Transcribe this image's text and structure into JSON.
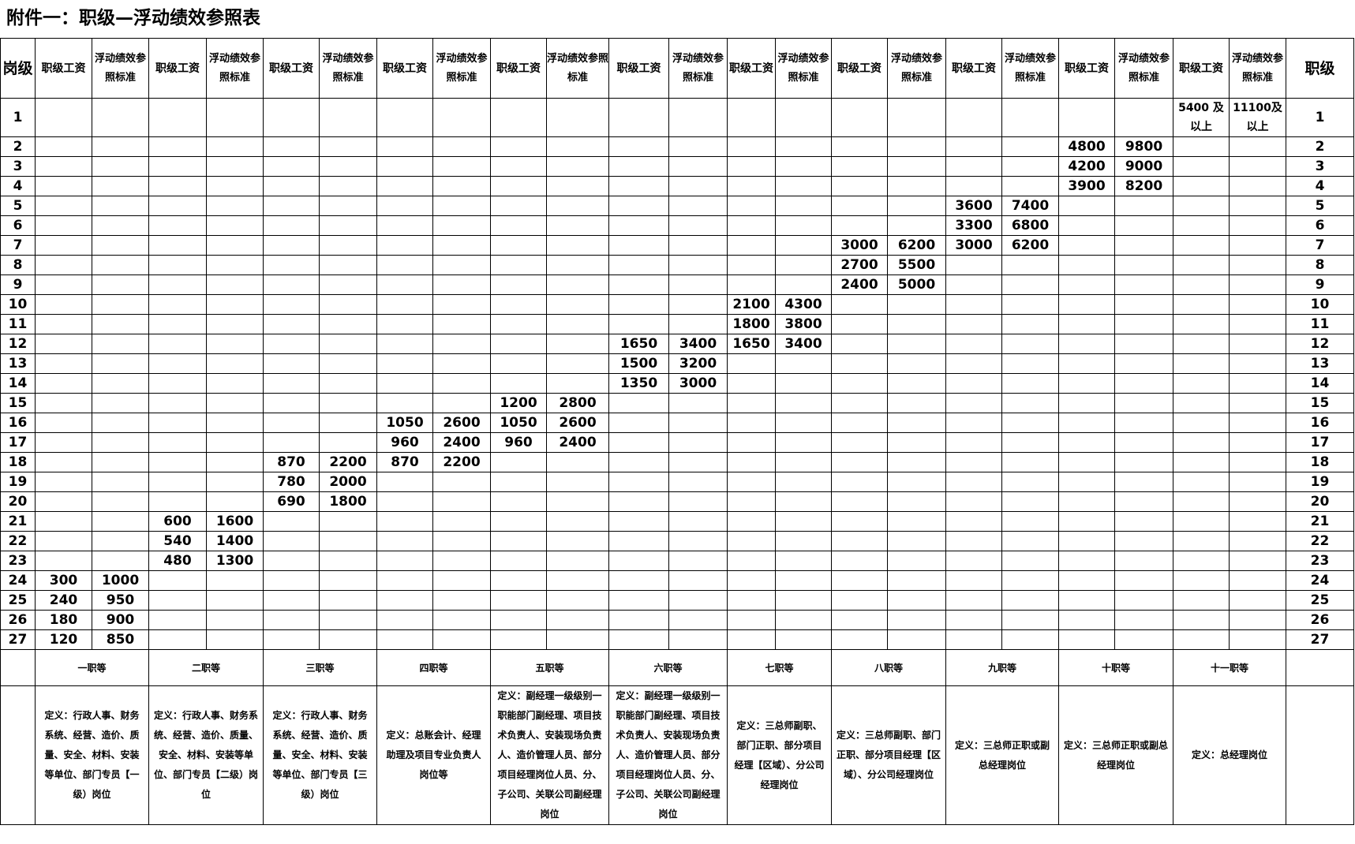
{
  "title": "附件一：职级—浮动绩效参照表",
  "header": {
    "post_level": "岗级",
    "level": "职级",
    "pairs": [
      {
        "salary": "职级工资",
        "perf": "浮动绩效参照标准"
      },
      {
        "salary": "职级工资",
        "perf": "浮动绩效参照标准"
      },
      {
        "salary": "职级工资",
        "perf": "浮动绩效参照标准"
      },
      {
        "salary": "职级工资",
        "perf": "浮动绩效参照标准"
      },
      {
        "salary": "职级工资",
        "perf": "浮动绩效参照标准"
      },
      {
        "salary": "职级工资",
        "perf": "浮动绩效参照标准"
      },
      {
        "salary": "职级工资",
        "perf": "浮动绩效参照标准"
      },
      {
        "salary": "职级工资",
        "perf": "浮动绩效参照标准"
      },
      {
        "salary": "职级工资",
        "perf": "浮动绩效参照标准"
      },
      {
        "salary": "职级工资",
        "perf": "浮动绩效参照标准"
      },
      {
        "salary": "职级工资",
        "perf": "浮动绩效参照标准"
      }
    ]
  },
  "rows": [
    [
      "1",
      "",
      "",
      "",
      "",
      "",
      "",
      "",
      "",
      "",
      "",
      "",
      "",
      "",
      "",
      "",
      "",
      "",
      "",
      "",
      "",
      "5400 及以上",
      "11100及以上",
      "1"
    ],
    [
      "2",
      "",
      "",
      "",
      "",
      "",
      "",
      "",
      "",
      "",
      "",
      "",
      "",
      "",
      "",
      "",
      "",
      "",
      "",
      "4800",
      "9800",
      "",
      "",
      "2"
    ],
    [
      "3",
      "",
      "",
      "",
      "",
      "",
      "",
      "",
      "",
      "",
      "",
      "",
      "",
      "",
      "",
      "",
      "",
      "",
      "",
      "4200",
      "9000",
      "",
      "",
      "3"
    ],
    [
      "4",
      "",
      "",
      "",
      "",
      "",
      "",
      "",
      "",
      "",
      "",
      "",
      "",
      "",
      "",
      "",
      "",
      "",
      "",
      "3900",
      "8200",
      "",
      "",
      "4"
    ],
    [
      "5",
      "",
      "",
      "",
      "",
      "",
      "",
      "",
      "",
      "",
      "",
      "",
      "",
      "",
      "",
      "",
      "",
      "3600",
      "7400",
      "",
      "",
      "",
      "",
      "5"
    ],
    [
      "6",
      "",
      "",
      "",
      "",
      "",
      "",
      "",
      "",
      "",
      "",
      "",
      "",
      "",
      "",
      "",
      "",
      "3300",
      "6800",
      "",
      "",
      "",
      "",
      "6"
    ],
    [
      "7",
      "",
      "",
      "",
      "",
      "",
      "",
      "",
      "",
      "",
      "",
      "",
      "",
      "",
      "",
      "3000",
      "6200",
      "3000",
      "6200",
      "",
      "",
      "",
      "",
      "7"
    ],
    [
      "8",
      "",
      "",
      "",
      "",
      "",
      "",
      "",
      "",
      "",
      "",
      "",
      "",
      "",
      "",
      "2700",
      "5500",
      "",
      "",
      "",
      "",
      "",
      "",
      "8"
    ],
    [
      "9",
      "",
      "",
      "",
      "",
      "",
      "",
      "",
      "",
      "",
      "",
      "",
      "",
      "",
      "",
      "2400",
      "5000",
      "",
      "",
      "",
      "",
      "",
      "",
      "9"
    ],
    [
      "10",
      "",
      "",
      "",
      "",
      "",
      "",
      "",
      "",
      "",
      "",
      "",
      "",
      "2100",
      "4300",
      "",
      "",
      "",
      "",
      "",
      "",
      "",
      "",
      "10"
    ],
    [
      "11",
      "",
      "",
      "",
      "",
      "",
      "",
      "",
      "",
      "",
      "",
      "",
      "",
      "1800",
      "3800",
      "",
      "",
      "",
      "",
      "",
      "",
      "",
      "",
      "11"
    ],
    [
      "12",
      "",
      "",
      "",
      "",
      "",
      "",
      "",
      "",
      "",
      "",
      "1650",
      "3400",
      "1650",
      "3400",
      "",
      "",
      "",
      "",
      "",
      "",
      "",
      "",
      "12"
    ],
    [
      "13",
      "",
      "",
      "",
      "",
      "",
      "",
      "",
      "",
      "",
      "",
      "1500",
      "3200",
      "",
      "",
      "",
      "",
      "",
      "",
      "",
      "",
      "",
      "",
      "13"
    ],
    [
      "14",
      "",
      "",
      "",
      "",
      "",
      "",
      "",
      "",
      "",
      "",
      "1350",
      "3000",
      "",
      "",
      "",
      "",
      "",
      "",
      "",
      "",
      "",
      "",
      "14"
    ],
    [
      "15",
      "",
      "",
      "",
      "",
      "",
      "",
      "",
      "",
      "1200",
      "2800",
      "",
      "",
      "",
      "",
      "",
      "",
      "",
      "",
      "",
      "",
      "",
      "",
      "15"
    ],
    [
      "16",
      "",
      "",
      "",
      "",
      "",
      "",
      "1050",
      "2600",
      "1050",
      "2600",
      "",
      "",
      "",
      "",
      "",
      "",
      "",
      "",
      "",
      "",
      "",
      "",
      "16"
    ],
    [
      "17",
      "",
      "",
      "",
      "",
      "",
      "",
      "960",
      "2400",
      "960",
      "2400",
      "",
      "",
      "",
      "",
      "",
      "",
      "",
      "",
      "",
      "",
      "",
      "",
      "17"
    ],
    [
      "18",
      "",
      "",
      "",
      "",
      "870",
      "2200",
      "870",
      "2200",
      "",
      "",
      "",
      "",
      "",
      "",
      "",
      "",
      "",
      "",
      "",
      "",
      "",
      "",
      "18"
    ],
    [
      "19",
      "",
      "",
      "",
      "",
      "780",
      "2000",
      "",
      "",
      "",
      "",
      "",
      "",
      "",
      "",
      "",
      "",
      "",
      "",
      "",
      "",
      "",
      "",
      "19"
    ],
    [
      "20",
      "",
      "",
      "",
      "",
      "690",
      "1800",
      "",
      "",
      "",
      "",
      "",
      "",
      "",
      "",
      "",
      "",
      "",
      "",
      "",
      "",
      "",
      "",
      "20"
    ],
    [
      "21",
      "",
      "",
      "600",
      "1600",
      "",
      "",
      "",
      "",
      "",
      "",
      "",
      "",
      "",
      "",
      "",
      "",
      "",
      "",
      "",
      "",
      "",
      "",
      "21"
    ],
    [
      "22",
      "",
      "",
      "540",
      "1400",
      "",
      "",
      "",
      "",
      "",
      "",
      "",
      "",
      "",
      "",
      "",
      "",
      "",
      "",
      "",
      "",
      "",
      "",
      "22"
    ],
    [
      "23",
      "",
      "",
      "480",
      "1300",
      "",
      "",
      "",
      "",
      "",
      "",
      "",
      "",
      "",
      "",
      "",
      "",
      "",
      "",
      "",
      "",
      "",
      "",
      "23"
    ],
    [
      "24",
      "300",
      "1000",
      "",
      "",
      "",
      "",
      "",
      "",
      "",
      "",
      "",
      "",
      "",
      "",
      "",
      "",
      "",
      "",
      "",
      "",
      "",
      "",
      "24"
    ],
    [
      "25",
      "240",
      "950",
      "",
      "",
      "",
      "",
      "",
      "",
      "",
      "",
      "",
      "",
      "",
      "",
      "",
      "",
      "",
      "",
      "",
      "",
      "",
      "",
      "25"
    ],
    [
      "26",
      "180",
      "900",
      "",
      "",
      "",
      "",
      "",
      "",
      "",
      "",
      "",
      "",
      "",
      "",
      "",
      "",
      "",
      "",
      "",
      "",
      "",
      "",
      "26"
    ],
    [
      "27",
      "120",
      "850",
      "",
      "",
      "",
      "",
      "",
      "",
      "",
      "",
      "",
      "",
      "",
      "",
      "",
      "",
      "",
      "",
      "",
      "",
      "",
      "",
      "27"
    ]
  ],
  "grades": [
    {
      "name": "一职等",
      "definition": "定义：行政人事、财务系统、经营、造价、质量、安全、材料、安装等单位、部门专员【一级）岗位"
    },
    {
      "name": "二职等",
      "definition": "定义：行政人事、财务系统、经营、造价、质量、安全、材料、安装等单位、部门专员【二级）岗位"
    },
    {
      "name": "三职等",
      "definition": "定义：行政人事、财务系统、经营、造价、质量、安全、材料、安装等单位、部门专员【三级）岗位"
    },
    {
      "name": "四职等",
      "definition": "定义：总账会计、经理助理及项目专业负责人岗位等"
    },
    {
      "name": "五职等",
      "definition": "定义：副经理一级级别一职能部门副经理、项目技术负责人、安装现场负责人、造价管理人员、部分项目经理岗位人员、分、子公司、关联公司副经理岗位"
    },
    {
      "name": "六职等",
      "definition": "定义：副经理一级级别一职能部门副经理、项目技术负责人、安装现场负责人、造价管理人员、部分项目经理岗位人员、分、子公司、关联公司副经理岗位"
    },
    {
      "name": "七职等",
      "definition": "定义：三总师副职、部门正职、部分项目经理【区域）、分公司经理岗位"
    },
    {
      "name": "八职等",
      "definition": "定义：三总师副职、部门正职、部分项目经理【区域）、分公司经理岗位"
    },
    {
      "name": "九职等",
      "definition": "定义：三总师正职或副总经理岗位"
    },
    {
      "name": "十职等",
      "definition": "定义：三总师正职或副总经理岗位"
    },
    {
      "name": "十一职等",
      "definition": "定义：总经理岗位"
    }
  ]
}
